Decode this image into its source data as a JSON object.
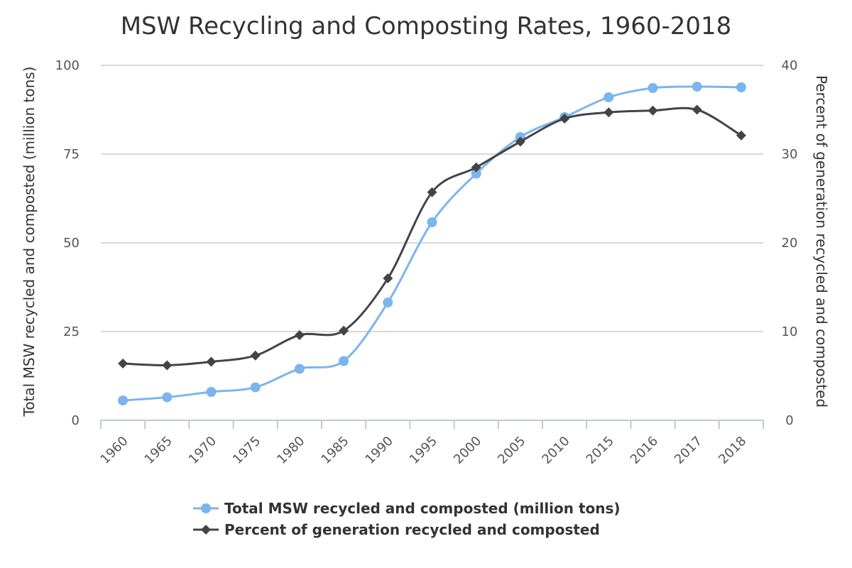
{
  "chart_data": {
    "type": "line",
    "title": "MSW Recycling and Composting Rates, 1960-2018",
    "categories": [
      "1960",
      "1965",
      "1970",
      "1975",
      "1980",
      "1985",
      "1990",
      "1995",
      "2000",
      "2005",
      "2010",
      "2015",
      "2016",
      "2017",
      "2018"
    ],
    "ylabel": "Total MSW recycled and composted (million tons)",
    "ylabel_right": "Percent of generation recycled and composted",
    "ylim": [
      0,
      100
    ],
    "ylim_right": [
      0,
      40
    ],
    "yticks": [
      "0",
      "25",
      "50",
      "75",
      "100"
    ],
    "yticks_right": [
      "0",
      "10",
      "20",
      "30",
      "40"
    ],
    "grid": true,
    "legend_position": "bottom",
    "series": [
      {
        "name": "Total MSW recycled and composted (million tons)",
        "axis": "left",
        "color": "#7cb5ec",
        "marker": "circle",
        "values": [
          5.6,
          6.5,
          8.0,
          9.3,
          14.5,
          16.7,
          33.2,
          55.8,
          69.5,
          79.8,
          85.4,
          91.0,
          93.6,
          94.0,
          93.8
        ]
      },
      {
        "name": "Percent of generation recycled and composted",
        "axis": "right",
        "color": "#434348",
        "marker": "diamond",
        "values": [
          6.4,
          6.2,
          6.6,
          7.3,
          9.6,
          10.1,
          16.0,
          25.7,
          28.5,
          31.4,
          34.0,
          34.7,
          34.9,
          35.0,
          32.1
        ]
      }
    ]
  }
}
